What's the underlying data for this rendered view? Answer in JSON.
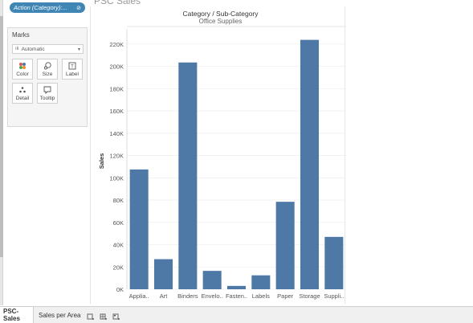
{
  "header": {
    "title": "PSC Sales",
    "filter_pill": {
      "label": "Action (Category):...",
      "icon": "filter-icon"
    }
  },
  "marks": {
    "title": "Marks",
    "mark_type": "Automatic",
    "buttons": [
      {
        "label": "Color",
        "icon": "color-icon"
      },
      {
        "label": "Size",
        "icon": "size-icon"
      },
      {
        "label": "Label",
        "icon": "label-icon"
      },
      {
        "label": "Detail",
        "icon": "detail-icon"
      },
      {
        "label": "Tooltip",
        "icon": "tooltip-icon"
      }
    ]
  },
  "chart_data": {
    "type": "bar",
    "title": "Category / Sub-Category",
    "subtitle": "Office Supplies",
    "ylabel": "Sales",
    "xlabel": "",
    "categories": [
      "Applia..",
      "Art",
      "Binders",
      "Envelo..",
      "Fasten..",
      "Labels",
      "Paper",
      "Storage",
      "Suppli.."
    ],
    "values": [
      107500,
      27000,
      203500,
      16500,
      3000,
      12500,
      78500,
      223800,
      47000
    ],
    "ylim": [
      0,
      230000
    ],
    "yticks": [
      0,
      20000,
      40000,
      60000,
      80000,
      100000,
      120000,
      140000,
      160000,
      180000,
      200000,
      220000
    ],
    "ytick_labels": [
      "0K",
      "20K",
      "40K",
      "60K",
      "80K",
      "100K",
      "120K",
      "140K",
      "160K",
      "180K",
      "200K",
      "220K"
    ],
    "bar_color": "#4e79a7",
    "grid": true
  },
  "tabs": {
    "items": [
      {
        "label": "PSC-Sales",
        "active": true
      },
      {
        "label": "Sales per Area",
        "active": false
      }
    ],
    "icons": [
      "new-worksheet-icon",
      "new-dashboard-icon",
      "new-story-icon"
    ]
  },
  "colors": {
    "accent": "#3f86b5",
    "bar": "#4e79a7",
    "panel": "#f5f5f5"
  }
}
